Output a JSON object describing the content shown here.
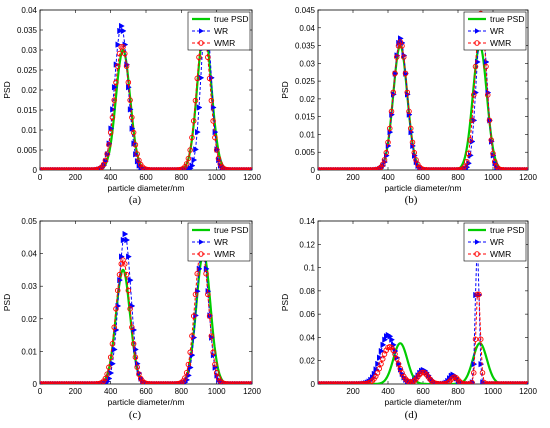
{
  "chart_data": [
    {
      "id": "a",
      "type": "line",
      "caption": "(a)",
      "xlabel": "particle diameter/nm",
      "ylabel": "PSD",
      "xlim": [
        0,
        1200
      ],
      "ylim": [
        0,
        0.04
      ],
      "xticks": [
        0,
        200,
        400,
        600,
        800,
        1000,
        1200
      ],
      "yticks": [
        "0",
        "0.005",
        "0.01",
        "0.015",
        "0.02",
        "0.025",
        "0.03",
        "0.035",
        "0.04"
      ],
      "legend_position": "top-right",
      "series": [
        {
          "name": "true PSD",
          "color": "#00cc00",
          "style": "solid",
          "peaks": [
            [
              470,
              0.03,
              40
            ],
            [
              930,
              0.035,
              40
            ]
          ]
        },
        {
          "name": "WR",
          "color": "#0000ff",
          "style": "dash-triangle",
          "peaks": [
            [
              460,
              0.036,
              38
            ],
            [
              940,
              0.038,
              30
            ]
          ]
        },
        {
          "name": "WMR",
          "color": "#ff0000",
          "style": "dash-circle",
          "peaks": [
            [
              465,
              0.031,
              42
            ],
            [
              925,
              0.035,
              38
            ]
          ]
        }
      ]
    },
    {
      "id": "b",
      "type": "line",
      "caption": "(b)",
      "xlabel": "particle diameter/nm",
      "ylabel": "PSD",
      "xlim": [
        0,
        1200
      ],
      "ylim": [
        0,
        0.045
      ],
      "xticks": [
        0,
        200,
        400,
        600,
        800,
        1000,
        1200
      ],
      "yticks": [
        "0",
        "0.005",
        "0.01",
        "0.015",
        "0.02",
        "0.025",
        "0.03",
        "0.035",
        "0.04",
        "0.045"
      ],
      "legend_position": "top-right",
      "series": [
        {
          "name": "true PSD",
          "color": "#00cc00",
          "style": "solid",
          "peaks": [
            [
              470,
              0.035,
              40
            ],
            [
              925,
              0.035,
              40
            ]
          ]
        },
        {
          "name": "WR",
          "color": "#0000ff",
          "style": "dash-triangle",
          "peaks": [
            [
              470,
              0.037,
              38
            ],
            [
              935,
              0.043,
              30
            ]
          ]
        },
        {
          "name": "WMR",
          "color": "#ff0000",
          "style": "dash-circle",
          "peaks": [
            [
              470,
              0.036,
              40
            ],
            [
              930,
              0.044,
              33
            ]
          ]
        }
      ]
    },
    {
      "id": "c",
      "type": "line",
      "caption": "(c)",
      "xlabel": "particle diameter/nm",
      "ylabel": "PSD",
      "xlim": [
        0,
        1200
      ],
      "ylim": [
        0,
        0.05
      ],
      "xticks": [
        0,
        200,
        400,
        600,
        800,
        1000,
        1200
      ],
      "yticks": [
        "0",
        "0.01",
        "0.02",
        "0.03",
        "0.04",
        "0.05"
      ],
      "legend_position": "top-right",
      "series": [
        {
          "name": "true PSD",
          "color": "#00cc00",
          "style": "solid",
          "peaks": [
            [
              470,
              0.035,
              40
            ],
            [
              925,
              0.04,
              40
            ]
          ]
        },
        {
          "name": "WR",
          "color": "#0000ff",
          "style": "dash-triangle",
          "peaks": [
            [
              480,
              0.046,
              35
            ],
            [
              920,
              0.042,
              34
            ]
          ]
        },
        {
          "name": "WMR",
          "color": "#ff0000",
          "style": "dash-circle",
          "peaks": [
            [
              470,
              0.038,
              40
            ],
            [
              915,
              0.042,
              38
            ]
          ]
        }
      ]
    },
    {
      "id": "d",
      "type": "line",
      "caption": "(d)",
      "xlabel": "particle diameter/nm",
      "ylabel": "PSD",
      "xlim": [
        0,
        1200
      ],
      "ylim": [
        0,
        0.14
      ],
      "xticks": [
        200,
        400,
        600,
        800,
        1000,
        1200
      ],
      "yticks": [
        "0",
        "0.02",
        "0.04",
        "0.06",
        "0.08",
        "0.1",
        "0.12",
        "0.14"
      ],
      "legend_position": "top-right",
      "series": [
        {
          "name": "true PSD",
          "color": "#00cc00",
          "style": "solid",
          "peaks": [
            [
              470,
              0.035,
              40
            ],
            [
              925,
              0.035,
              40
            ]
          ]
        },
        {
          "name": "WR",
          "color": "#0000ff",
          "style": "dash-triangle",
          "peaks": [
            [
              400,
              0.042,
              45
            ],
            [
              600,
              0.012,
              30
            ],
            [
              770,
              0.008,
              20
            ],
            [
              910,
              0.126,
              10
            ]
          ]
        },
        {
          "name": "WMR",
          "color": "#ff0000",
          "style": "dash-circle",
          "peaks": [
            [
              410,
              0.032,
              45
            ],
            [
              600,
              0.01,
              30
            ],
            [
              780,
              0.006,
              20
            ],
            [
              915,
              0.084,
              12
            ]
          ]
        }
      ]
    }
  ]
}
